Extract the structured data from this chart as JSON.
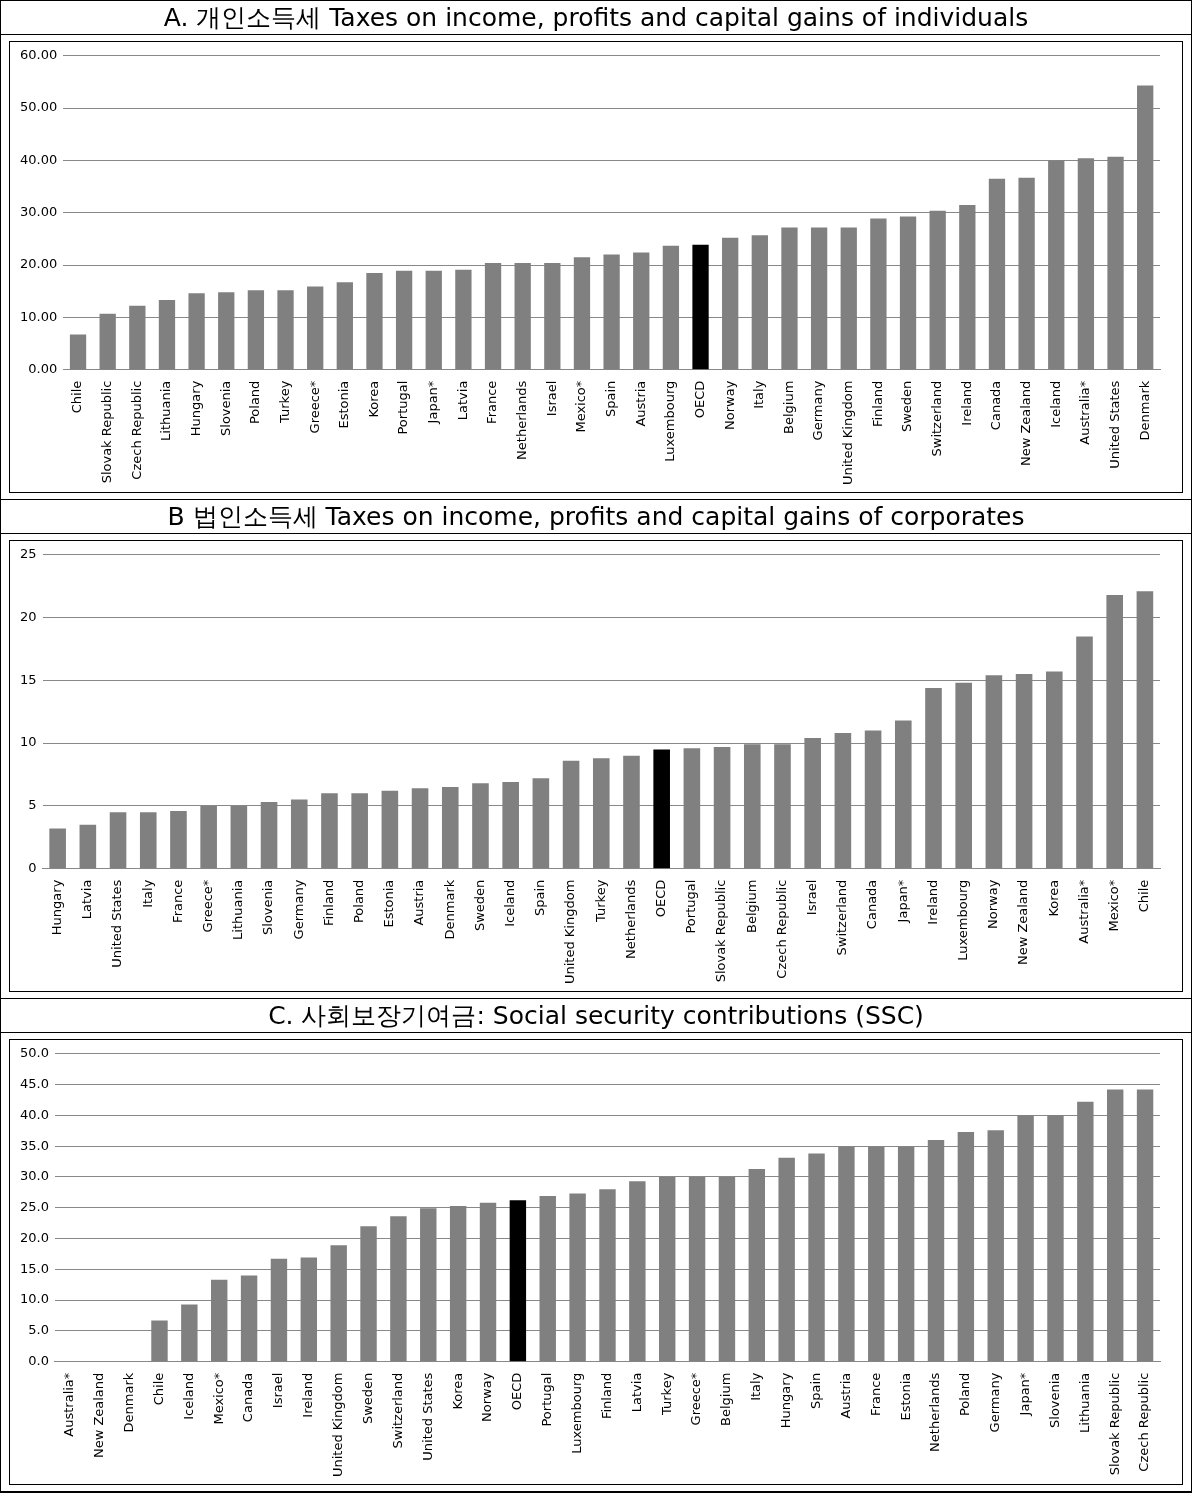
{
  "chart_data": [
    {
      "type": "bar",
      "title": "A. 개인소득세  Taxes on income, profits and capital gains of individuals",
      "categories": [
        "Chile",
        "Slovak Republic",
        "Czech Republic",
        "Lithuania",
        "Hungary",
        "Slovenia",
        "Poland",
        "Turkey",
        "Greece*",
        "Estonia",
        "Korea",
        "Portugal",
        "Japan*",
        "Latvia",
        "France",
        "Netherlands",
        "Israel",
        "Mexico*",
        "Spain",
        "Austria",
        "Luxembourg",
        "OECD",
        "Norway",
        "Italy",
        "Belgium",
        "Germany",
        "United Kingdom",
        "Finland",
        "Sweden",
        "Switzerland",
        "Ireland",
        "Canada",
        "New Zealand",
        "Iceland",
        "Australia*",
        "United States",
        "Denmark"
      ],
      "values": [
        6.7,
        10.7,
        12.2,
        13.3,
        14.6,
        14.8,
        15.2,
        15.2,
        15.9,
        16.7,
        18.5,
        18.9,
        18.9,
        19.1,
        20.4,
        20.4,
        20.4,
        21.5,
        22.0,
        22.4,
        23.7,
        23.9,
        25.2,
        25.7,
        27.2,
        27.2,
        27.2,
        28.9,
        29.3,
        30.4,
        31.5,
        36.5,
        36.7,
        40.0,
        40.4,
        40.7,
        54.3
      ],
      "colors": [
        "#808080",
        "#808080",
        "#808080",
        "#808080",
        "#808080",
        "#808080",
        "#808080",
        "#808080",
        "#808080",
        "#808080",
        "#808080",
        "#808080",
        "#808080",
        "#808080",
        "#808080",
        "#808080",
        "#808080",
        "#808080",
        "#808080",
        "#808080",
        "#808080",
        "#000000",
        "#808080",
        "#808080",
        "#808080",
        "#808080",
        "#808080",
        "#808080",
        "#808080",
        "#808080",
        "#808080",
        "#808080",
        "#808080",
        "#808080",
        "#808080",
        "#808080",
        "#808080"
      ],
      "ylim": [
        0,
        60
      ],
      "yticks": [
        {
          "value": 0,
          "label": "0.00"
        },
        {
          "value": 10,
          "label": "10.00"
        },
        {
          "value": 20,
          "label": "20.00"
        },
        {
          "value": 30,
          "label": "30.00"
        },
        {
          "value": 40,
          "label": "40.00"
        },
        {
          "value": 50,
          "label": "50.00"
        },
        {
          "value": 60,
          "label": "60.00"
        }
      ],
      "grid": "y",
      "legend": false
    },
    {
      "type": "bar",
      "title": "B 법인소득세 Taxes on income, profits and capital gains of corporates",
      "categories": [
        "Hungary",
        "Latvia",
        "United States",
        "Italy",
        "France",
        "Greece*",
        "Lithuania",
        "Slovenia",
        "Germany",
        "Finland",
        "Poland",
        "Estonia",
        "Austria",
        "Denmark",
        "Sweden",
        "Iceland",
        "Spain",
        "United Kingdom",
        "Turkey",
        "Netherlands",
        "OECD",
        "Portugal",
        "Slovak Republic",
        "Belgium",
        "Czech Republic",
        "Israel",
        "Switzerland",
        "Canada",
        "Japan*",
        "Ireland",
        "Luxembourg",
        "Norway",
        "New Zealand",
        "Korea",
        "Australia*",
        "Mexico*",
        "Chile"
      ],
      "values": [
        3.2,
        3.5,
        4.5,
        4.5,
        4.6,
        5.0,
        5.0,
        5.3,
        5.5,
        6.0,
        6.0,
        6.2,
        6.4,
        6.5,
        6.8,
        6.9,
        7.2,
        8.6,
        8.8,
        9.0,
        9.5,
        9.6,
        9.7,
        9.9,
        9.9,
        10.4,
        10.8,
        11.0,
        11.8,
        14.4,
        14.8,
        15.4,
        15.5,
        15.7,
        18.5,
        21.8,
        22.1
      ],
      "colors": [
        "#808080",
        "#808080",
        "#808080",
        "#808080",
        "#808080",
        "#808080",
        "#808080",
        "#808080",
        "#808080",
        "#808080",
        "#808080",
        "#808080",
        "#808080",
        "#808080",
        "#808080",
        "#808080",
        "#808080",
        "#808080",
        "#808080",
        "#808080",
        "#000000",
        "#808080",
        "#808080",
        "#808080",
        "#808080",
        "#808080",
        "#808080",
        "#808080",
        "#808080",
        "#808080",
        "#808080",
        "#808080",
        "#808080",
        "#808080",
        "#808080",
        "#808080",
        "#808080"
      ],
      "ylim": [
        0,
        25
      ],
      "yticks": [
        0,
        5,
        10,
        15,
        20,
        25
      ],
      "grid": "y",
      "legend": false
    },
    {
      "type": "bar",
      "title": "C. 사회보장기여금: Social security contributions (SSC)",
      "categories": [
        "Australia*",
        "New Zealand",
        "Denmark",
        "Chile",
        "Iceland",
        "Mexico*",
        "Canada",
        "Israel",
        "Ireland",
        "United Kingdom",
        "Sweden",
        "Switzerland",
        "United States",
        "Korea",
        "Norway",
        "OECD",
        "Portugal",
        "Luxembourg",
        "Finland",
        "Latvia",
        "Turkey",
        "Greece*",
        "Belgium",
        "Italy",
        "Hungary",
        "Spain",
        "Austria",
        "France",
        "Estonia",
        "Netherlands",
        "Poland",
        "Germany",
        "Japan*",
        "Slovenia",
        "Lithuania",
        "Slovak Republic",
        "Czech Republic"
      ],
      "values": [
        0,
        0,
        0,
        6.7,
        9.3,
        13.3,
        14.0,
        16.7,
        16.9,
        18.9,
        22.0,
        23.6,
        24.9,
        25.3,
        25.8,
        26.2,
        26.9,
        27.3,
        28.0,
        29.3,
        30.0,
        30.0,
        30.0,
        31.3,
        33.1,
        33.8,
        34.9,
        34.9,
        34.9,
        36.0,
        37.3,
        37.6,
        40.0,
        40.0,
        42.2,
        44.2,
        44.2
      ],
      "colors": [
        "#808080",
        "#808080",
        "#808080",
        "#808080",
        "#808080",
        "#808080",
        "#808080",
        "#808080",
        "#808080",
        "#808080",
        "#808080",
        "#808080",
        "#808080",
        "#808080",
        "#808080",
        "#000000",
        "#808080",
        "#808080",
        "#808080",
        "#808080",
        "#808080",
        "#808080",
        "#808080",
        "#808080",
        "#808080",
        "#808080",
        "#808080",
        "#808080",
        "#808080",
        "#808080",
        "#808080",
        "#808080",
        "#808080",
        "#808080",
        "#808080",
        "#808080",
        "#808080"
      ],
      "ylim": [
        0,
        50
      ],
      "yticks": [
        {
          "value": 0,
          "label": "0.0"
        },
        {
          "value": 5,
          "label": "5.0"
        },
        {
          "value": 10,
          "label": "10.0"
        },
        {
          "value": 15,
          "label": "15.0"
        },
        {
          "value": 20,
          "label": "20.0"
        },
        {
          "value": 25,
          "label": "25.0"
        },
        {
          "value": 30,
          "label": "30.0"
        },
        {
          "value": 35,
          "label": "35.0"
        },
        {
          "value": 40,
          "label": "40.0"
        },
        {
          "value": 45,
          "label": "45.0"
        },
        {
          "value": 50,
          "label": "50.0"
        }
      ],
      "grid": "y",
      "legend": false
    }
  ]
}
